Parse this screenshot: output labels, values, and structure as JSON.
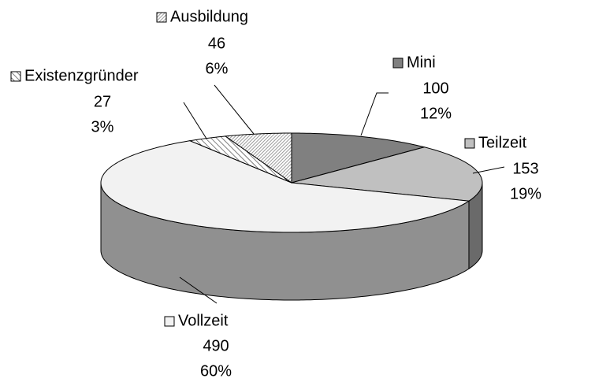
{
  "chart_data": {
    "type": "pie3d",
    "categories": [
      "Mini",
      "Teilzeit",
      "Vollzeit",
      "Existenzgründer",
      "Ausbildung"
    ],
    "values": [
      100,
      153,
      490,
      27,
      46
    ],
    "percent_labels": [
      "12%",
      "19%",
      "60%",
      "3%",
      "6%"
    ],
    "colors": [
      "#808080",
      "#c0c0c0",
      "#f2f2f2",
      "#303030",
      "#909090"
    ],
    "hatched": [
      false,
      false,
      false,
      true,
      true
    ]
  }
}
